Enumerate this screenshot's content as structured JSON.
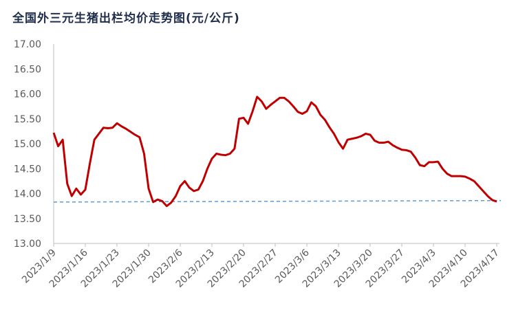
{
  "chart_data": {
    "type": "line",
    "title": "全国外三元生猪出栏均价走势图(元/公斤)",
    "categories": [
      "2023/1/9",
      null,
      null,
      null,
      null,
      null,
      null,
      "2023/1/16",
      null,
      null,
      null,
      null,
      null,
      null,
      "2023/1/23",
      null,
      null,
      null,
      null,
      null,
      null,
      "2023/1/30",
      null,
      null,
      null,
      null,
      null,
      null,
      "2023/2/6",
      null,
      null,
      null,
      null,
      null,
      null,
      "2023/2/13",
      null,
      null,
      null,
      null,
      null,
      null,
      "2023/2/20",
      null,
      null,
      null,
      null,
      null,
      null,
      "2023/2/27",
      null,
      null,
      null,
      null,
      null,
      null,
      "2023/3/6",
      null,
      null,
      null,
      null,
      null,
      null,
      "2023/3/13",
      null,
      null,
      null,
      null,
      null,
      null,
      "2023/3/20",
      null,
      null,
      null,
      null,
      null,
      null,
      "2023/3/27",
      null,
      null,
      null,
      null,
      null,
      null,
      "2023/4/3",
      null,
      null,
      null,
      null,
      null,
      null,
      "2023/4/10",
      null,
      null,
      null,
      null,
      null,
      null,
      "2023/4/17"
    ],
    "values": [
      15.22,
      14.95,
      15.08,
      14.2,
      13.95,
      14.1,
      13.98,
      14.08,
      14.6,
      15.08,
      15.2,
      15.32,
      15.31,
      15.32,
      15.41,
      15.35,
      15.3,
      15.24,
      15.18,
      15.13,
      14.8,
      14.1,
      13.83,
      13.88,
      13.85,
      13.75,
      13.82,
      13.95,
      14.15,
      14.25,
      14.12,
      14.05,
      14.08,
      14.25,
      14.5,
      14.7,
      14.8,
      14.78,
      14.77,
      14.8,
      14.9,
      15.5,
      15.52,
      15.4,
      15.65,
      15.94,
      15.85,
      15.7,
      15.78,
      15.85,
      15.92,
      15.92,
      15.85,
      15.75,
      15.64,
      15.6,
      15.65,
      15.83,
      15.75,
      15.58,
      15.48,
      15.33,
      15.2,
      15.03,
      14.9,
      15.08,
      15.1,
      15.12,
      15.15,
      15.2,
      15.18,
      15.06,
      15.02,
      15.02,
      15.04,
      14.97,
      14.92,
      14.88,
      14.87,
      14.84,
      14.72,
      14.57,
      14.55,
      14.63,
      14.63,
      14.64,
      14.5,
      14.4,
      14.35,
      14.35,
      14.35,
      14.34,
      14.3,
      14.25,
      14.15,
      14.05,
      13.95,
      13.87,
      13.84
    ],
    "color": "#c00000",
    "trendline": {
      "start": 13.83,
      "end": 13.86,
      "color": "#5b9bd5"
    },
    "ylim": [
      13,
      17
    ],
    "yticks": [
      {
        "value": 13,
        "label": "13.00"
      },
      {
        "value": 13.5,
        "label": "13.50"
      },
      {
        "value": 14,
        "label": "14.00"
      },
      {
        "value": 14.5,
        "label": "14.50"
      },
      {
        "value": 15,
        "label": "15.00"
      },
      {
        "value": 15.5,
        "label": "15.50"
      },
      {
        "value": 16,
        "label": "16.00"
      },
      {
        "value": 16.5,
        "label": "16.50"
      },
      {
        "value": 17,
        "label": "17.00"
      }
    ],
    "grid": false
  }
}
